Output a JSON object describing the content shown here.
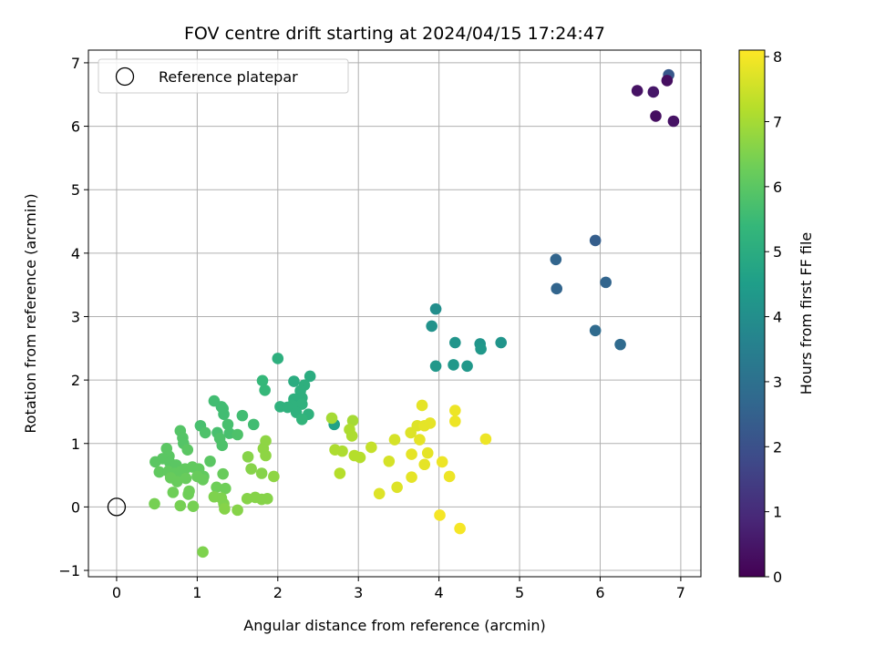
{
  "chart_data": {
    "type": "scatter",
    "title": "FOV centre drift starting at 2024/04/15 17:24:47",
    "xlabel": "Angular distance from reference (arcmin)",
    "ylabel": "Rotation from reference (arcmin)",
    "xlim": [
      -0.35,
      7.25
    ],
    "ylim": [
      -1.1,
      7.2
    ],
    "xticks": [
      0,
      1,
      2,
      3,
      4,
      5,
      6,
      7
    ],
    "yticks": [
      -1,
      0,
      1,
      2,
      3,
      4,
      5,
      6,
      7
    ],
    "grid": true,
    "legend": {
      "placement": "upper-left",
      "entries": [
        "Reference platepar"
      ]
    },
    "reference_point": {
      "x": 0,
      "y": 0,
      "label": "Reference platepar"
    },
    "colorbar": {
      "label": "Hours from first FF file",
      "range": [
        0,
        8.1
      ],
      "ticks": [
        0,
        1,
        2,
        3,
        4,
        5,
        6,
        7,
        8
      ],
      "colormap": "viridis"
    },
    "points": [
      {
        "x": 6.85,
        "y": 6.81,
        "c": 2.2
      },
      {
        "x": 6.83,
        "y": 6.72,
        "c": 0.3
      },
      {
        "x": 6.46,
        "y": 6.56,
        "c": 0.4
      },
      {
        "x": 6.66,
        "y": 6.54,
        "c": 0.5
      },
      {
        "x": 6.69,
        "y": 6.16,
        "c": 0.3
      },
      {
        "x": 6.91,
        "y": 6.08,
        "c": 0.4
      },
      {
        "x": 5.94,
        "y": 4.2,
        "c": 2.4
      },
      {
        "x": 5.45,
        "y": 3.9,
        "c": 2.6
      },
      {
        "x": 5.46,
        "y": 3.44,
        "c": 2.6
      },
      {
        "x": 6.07,
        "y": 3.54,
        "c": 2.6
      },
      {
        "x": 5.94,
        "y": 2.78,
        "c": 2.8
      },
      {
        "x": 6.25,
        "y": 2.56,
        "c": 2.8
      },
      {
        "x": 3.96,
        "y": 3.12,
        "c": 4.0
      },
      {
        "x": 3.91,
        "y": 2.85,
        "c": 4.1
      },
      {
        "x": 4.2,
        "y": 2.59,
        "c": 4.2
      },
      {
        "x": 4.51,
        "y": 2.57,
        "c": 4.2
      },
      {
        "x": 4.52,
        "y": 2.49,
        "c": 4.3
      },
      {
        "x": 4.77,
        "y": 2.59,
        "c": 4.2
      },
      {
        "x": 3.96,
        "y": 2.22,
        "c": 4.3
      },
      {
        "x": 4.18,
        "y": 2.24,
        "c": 4.3
      },
      {
        "x": 4.35,
        "y": 2.22,
        "c": 4.3
      },
      {
        "x": 2.7,
        "y": 1.3,
        "c": 4.6
      },
      {
        "x": 2.0,
        "y": 2.34,
        "c": 5.1
      },
      {
        "x": 2.4,
        "y": 2.06,
        "c": 5.0
      },
      {
        "x": 2.2,
        "y": 1.98,
        "c": 5.0
      },
      {
        "x": 2.33,
        "y": 1.92,
        "c": 5.1
      },
      {
        "x": 2.28,
        "y": 1.83,
        "c": 5.1
      },
      {
        "x": 2.2,
        "y": 1.7,
        "c": 5.1
      },
      {
        "x": 2.3,
        "y": 1.72,
        "c": 5.1
      },
      {
        "x": 2.3,
        "y": 1.62,
        "c": 5.2
      },
      {
        "x": 2.18,
        "y": 1.6,
        "c": 5.2
      },
      {
        "x": 2.03,
        "y": 1.58,
        "c": 5.2
      },
      {
        "x": 2.12,
        "y": 1.57,
        "c": 5.2
      },
      {
        "x": 2.23,
        "y": 1.49,
        "c": 5.2
      },
      {
        "x": 2.38,
        "y": 1.46,
        "c": 5.2
      },
      {
        "x": 2.3,
        "y": 1.38,
        "c": 5.3
      },
      {
        "x": 1.81,
        "y": 1.99,
        "c": 5.4
      },
      {
        "x": 1.84,
        "y": 1.84,
        "c": 5.4
      },
      {
        "x": 1.21,
        "y": 1.67,
        "c": 5.6
      },
      {
        "x": 1.3,
        "y": 1.58,
        "c": 5.6
      },
      {
        "x": 1.32,
        "y": 1.55,
        "c": 5.6
      },
      {
        "x": 1.33,
        "y": 1.46,
        "c": 5.6
      },
      {
        "x": 1.56,
        "y": 1.44,
        "c": 5.6
      },
      {
        "x": 1.7,
        "y": 1.3,
        "c": 5.6
      },
      {
        "x": 1.38,
        "y": 1.3,
        "c": 5.7
      },
      {
        "x": 1.04,
        "y": 1.28,
        "c": 5.7
      },
      {
        "x": 1.25,
        "y": 1.17,
        "c": 5.7
      },
      {
        "x": 1.4,
        "y": 1.16,
        "c": 5.7
      },
      {
        "x": 1.5,
        "y": 1.14,
        "c": 5.8
      },
      {
        "x": 1.28,
        "y": 1.08,
        "c": 5.8
      },
      {
        "x": 1.31,
        "y": 0.97,
        "c": 5.8
      },
      {
        "x": 1.1,
        "y": 1.17,
        "c": 5.8
      },
      {
        "x": 0.79,
        "y": 1.2,
        "c": 5.9
      },
      {
        "x": 0.82,
        "y": 1.09,
        "c": 5.9
      },
      {
        "x": 0.83,
        "y": 1.0,
        "c": 5.9
      },
      {
        "x": 0.88,
        "y": 0.9,
        "c": 6.0
      },
      {
        "x": 0.62,
        "y": 0.92,
        "c": 6.0
      },
      {
        "x": 0.65,
        "y": 0.8,
        "c": 6.0
      },
      {
        "x": 0.48,
        "y": 0.71,
        "c": 6.0
      },
      {
        "x": 0.57,
        "y": 0.76,
        "c": 6.0
      },
      {
        "x": 0.66,
        "y": 0.7,
        "c": 6.0
      },
      {
        "x": 0.74,
        "y": 0.66,
        "c": 6.0
      },
      {
        "x": 1.16,
        "y": 0.72,
        "c": 6.0
      },
      {
        "x": 0.53,
        "y": 0.55,
        "c": 6.1
      },
      {
        "x": 0.64,
        "y": 0.56,
        "c": 6.1
      },
      {
        "x": 0.73,
        "y": 0.53,
        "c": 6.1
      },
      {
        "x": 0.8,
        "y": 0.56,
        "c": 6.1
      },
      {
        "x": 0.85,
        "y": 0.6,
        "c": 6.1
      },
      {
        "x": 0.94,
        "y": 0.63,
        "c": 6.1
      },
      {
        "x": 1.02,
        "y": 0.6,
        "c": 6.1
      },
      {
        "x": 1.08,
        "y": 0.48,
        "c": 6.1
      },
      {
        "x": 0.67,
        "y": 0.46,
        "c": 6.2
      },
      {
        "x": 0.75,
        "y": 0.4,
        "c": 6.2
      },
      {
        "x": 0.86,
        "y": 0.45,
        "c": 6.2
      },
      {
        "x": 1.0,
        "y": 0.48,
        "c": 6.2
      },
      {
        "x": 1.07,
        "y": 0.43,
        "c": 6.2
      },
      {
        "x": 1.32,
        "y": 0.52,
        "c": 6.2
      },
      {
        "x": 0.7,
        "y": 0.23,
        "c": 6.3
      },
      {
        "x": 0.89,
        "y": 0.2,
        "c": 6.3
      },
      {
        "x": 0.9,
        "y": 0.25,
        "c": 6.3
      },
      {
        "x": 1.24,
        "y": 0.31,
        "c": 6.3
      },
      {
        "x": 1.35,
        "y": 0.29,
        "c": 6.3
      },
      {
        "x": 0.47,
        "y": 0.05,
        "c": 6.4
      },
      {
        "x": 0.79,
        "y": 0.02,
        "c": 6.4
      },
      {
        "x": 0.95,
        "y": 0.01,
        "c": 6.4
      },
      {
        "x": 1.07,
        "y": -0.71,
        "c": 6.5
      },
      {
        "x": 1.21,
        "y": 0.16,
        "c": 6.5
      },
      {
        "x": 1.3,
        "y": 0.14,
        "c": 6.5
      },
      {
        "x": 1.33,
        "y": 0.05,
        "c": 6.5
      },
      {
        "x": 1.34,
        "y": -0.03,
        "c": 6.6
      },
      {
        "x": 1.5,
        "y": -0.05,
        "c": 6.6
      },
      {
        "x": 1.62,
        "y": 0.13,
        "c": 6.6
      },
      {
        "x": 1.72,
        "y": 0.15,
        "c": 6.6
      },
      {
        "x": 1.8,
        "y": 0.12,
        "c": 6.6
      },
      {
        "x": 1.87,
        "y": 0.13,
        "c": 6.6
      },
      {
        "x": 1.67,
        "y": 0.6,
        "c": 6.6
      },
      {
        "x": 1.8,
        "y": 0.53,
        "c": 6.6
      },
      {
        "x": 1.95,
        "y": 0.48,
        "c": 6.7
      },
      {
        "x": 1.63,
        "y": 0.79,
        "c": 6.6
      },
      {
        "x": 1.85,
        "y": 0.81,
        "c": 6.7
      },
      {
        "x": 1.82,
        "y": 0.92,
        "c": 6.7
      },
      {
        "x": 1.85,
        "y": 1.04,
        "c": 6.7
      },
      {
        "x": 2.67,
        "y": 1.4,
        "c": 7.0
      },
      {
        "x": 2.93,
        "y": 1.36,
        "c": 7.0
      },
      {
        "x": 2.89,
        "y": 1.22,
        "c": 7.1
      },
      {
        "x": 2.92,
        "y": 1.12,
        "c": 7.1
      },
      {
        "x": 2.71,
        "y": 0.9,
        "c": 7.1
      },
      {
        "x": 2.8,
        "y": 0.88,
        "c": 7.1
      },
      {
        "x": 2.95,
        "y": 0.81,
        "c": 7.2
      },
      {
        "x": 3.02,
        "y": 0.78,
        "c": 7.2
      },
      {
        "x": 2.77,
        "y": 0.53,
        "c": 7.2
      },
      {
        "x": 3.16,
        "y": 0.94,
        "c": 7.4
      },
      {
        "x": 3.26,
        "y": 0.21,
        "c": 7.7
      },
      {
        "x": 3.38,
        "y": 0.72,
        "c": 7.6
      },
      {
        "x": 3.45,
        "y": 1.06,
        "c": 7.6
      },
      {
        "x": 3.48,
        "y": 0.31,
        "c": 7.7
      },
      {
        "x": 3.65,
        "y": 1.17,
        "c": 7.7
      },
      {
        "x": 3.73,
        "y": 1.28,
        "c": 7.7
      },
      {
        "x": 3.79,
        "y": 1.6,
        "c": 7.8
      },
      {
        "x": 3.76,
        "y": 1.06,
        "c": 7.8
      },
      {
        "x": 3.66,
        "y": 0.83,
        "c": 7.8
      },
      {
        "x": 3.66,
        "y": 0.47,
        "c": 7.8
      },
      {
        "x": 3.82,
        "y": 1.28,
        "c": 7.8
      },
      {
        "x": 3.89,
        "y": 1.32,
        "c": 7.8
      },
      {
        "x": 3.86,
        "y": 0.85,
        "c": 7.8
      },
      {
        "x": 3.82,
        "y": 0.67,
        "c": 7.8
      },
      {
        "x": 4.04,
        "y": 0.71,
        "c": 7.9
      },
      {
        "x": 4.13,
        "y": 0.48,
        "c": 7.9
      },
      {
        "x": 4.01,
        "y": -0.13,
        "c": 8.0
      },
      {
        "x": 4.2,
        "y": 1.52,
        "c": 7.9
      },
      {
        "x": 4.2,
        "y": 1.35,
        "c": 7.9
      },
      {
        "x": 4.26,
        "y": -0.34,
        "c": 8.0
      },
      {
        "x": 4.58,
        "y": 1.07,
        "c": 7.9
      }
    ]
  }
}
